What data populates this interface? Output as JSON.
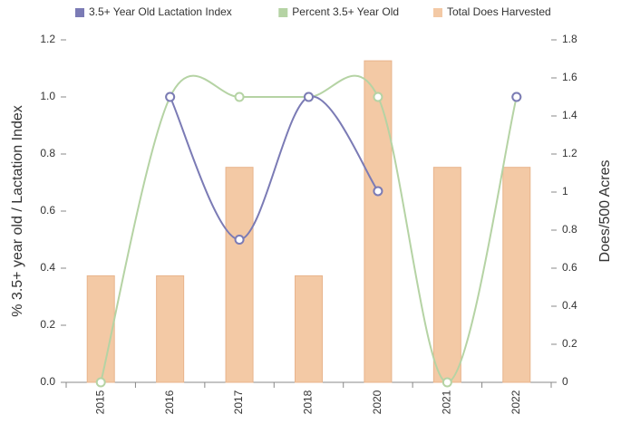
{
  "chart_data": {
    "type": "combo",
    "categories": [
      "2015",
      "2016",
      "2017",
      "2018",
      "2020",
      "2021",
      "2022"
    ],
    "series": [
      {
        "name": "3.5+ Year Old Lactation Index",
        "type": "line",
        "color": "#7b7bb5",
        "values": [
          null,
          1.0,
          0.5,
          1.0,
          0.67,
          null,
          1.0
        ]
      },
      {
        "name": "Percent 3.5+ Year Old",
        "type": "line",
        "color": "#b5d3a4",
        "values": [
          0,
          1.0,
          1.0,
          1.0,
          1.0,
          0,
          1.0
        ]
      },
      {
        "name": "Total Does Harvested",
        "type": "bar",
        "axis": "y2",
        "color": "#f3c9a5",
        "values": [
          0.56,
          0.56,
          1.13,
          0.56,
          1.69,
          1.13,
          1.13
        ]
      }
    ],
    "ylabel": "% 3.5+ year old / Lactation Index",
    "y2label": "Does/500 Acres",
    "ylim": [
      0,
      1.2
    ],
    "yticks": [
      {
        "value": 0,
        "label": "0.0"
      },
      0.2,
      0.4,
      0.6,
      0.8,
      {
        "value": 1,
        "label": "1.0"
      },
      1.2
    ],
    "y2lim": [
      0,
      1.8
    ],
    "y2ticks": [
      0,
      0.2,
      0.4,
      0.6,
      0.8,
      1,
      1.2,
      1.4,
      1.6,
      1.8
    ],
    "grid": false,
    "legend": "top"
  }
}
